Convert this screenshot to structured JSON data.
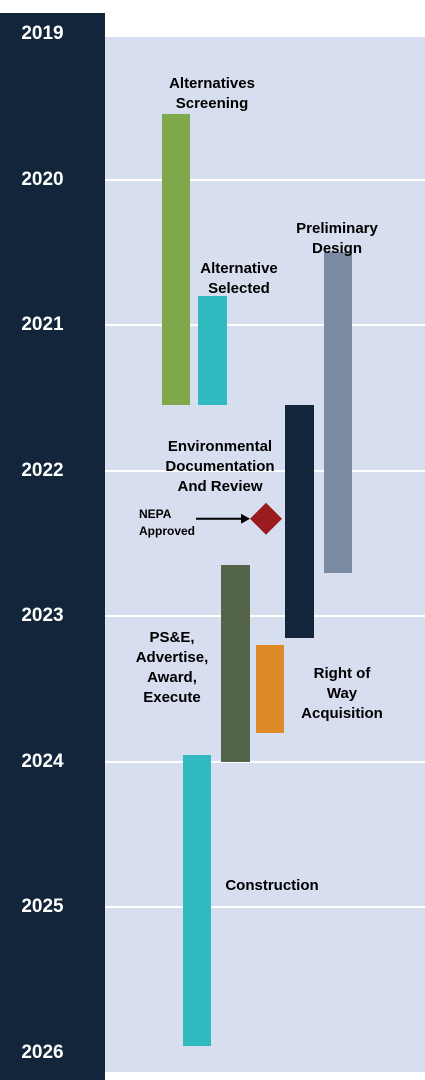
{
  "colors": {
    "axis_bg": "#13253a",
    "plot_bg": "#d7deef",
    "gridline": "#ffffff",
    "milestone": "#9b1c1f",
    "arrow": "#000000"
  },
  "chart_data": {
    "type": "timeline",
    "orientation": "vertical",
    "year_ticks": [
      "2019",
      "2020",
      "2021",
      "2022",
      "2023",
      "2024",
      "2025",
      "2026"
    ],
    "y_range": [
      2019,
      2026
    ],
    "grid": true,
    "tasks": [
      {
        "id": "alternatives-screening",
        "label": [
          "Alternatives",
          "Screening"
        ],
        "start": 2019.55,
        "end": 2021.55,
        "color": "#7fa84a"
      },
      {
        "id": "alternative-selected",
        "label": [
          "Alternative",
          "Selected"
        ],
        "start": 2020.8,
        "end": 2021.55,
        "color": "#2fbac0"
      },
      {
        "id": "preliminary-design",
        "label": [
          "Preliminary",
          "Design"
        ],
        "start": 2020.5,
        "end": 2022.7,
        "color": "#7a8ba1"
      },
      {
        "id": "environmental-documentation",
        "label": [
          "Environmental",
          "Documentation",
          "And Review"
        ],
        "start": 2021.55,
        "end": 2023.15,
        "color": "#13253a"
      },
      {
        "id": "pse-advertise-award-execute",
        "label": [
          "PS&E,",
          "Advertise,",
          "Award,",
          "Execute"
        ],
        "start": 2022.65,
        "end": 2024.0,
        "color": "#546448"
      },
      {
        "id": "right-of-way-acquisition",
        "label": [
          "Right of",
          "Way",
          "Acquisition"
        ],
        "start": 2023.2,
        "end": 2023.8,
        "color": "#df8a28"
      },
      {
        "id": "construction",
        "label": [
          "Construction"
        ],
        "start": 2023.95,
        "end": 2025.95,
        "color": "#2fbac0"
      }
    ],
    "milestones": [
      {
        "id": "nepa-approved",
        "label": [
          "NEPA",
          "Approved"
        ],
        "at": 2022.33,
        "color": "#9b1c1f"
      }
    ]
  }
}
